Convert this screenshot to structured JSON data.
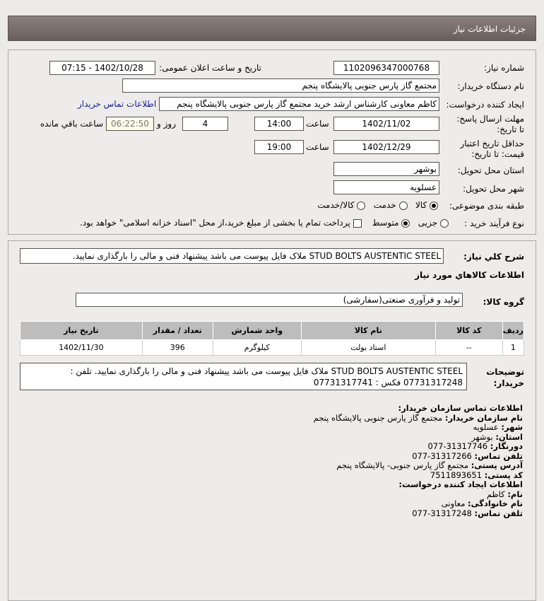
{
  "header": {
    "title": "جزئیات اطلاعات نیاز"
  },
  "form": {
    "need_number_label": "شماره نیاز:",
    "need_number": "1102096347000768",
    "announce_label": "تاریخ و ساعت اعلان عمومی:",
    "announce_value": "1402/10/28 - 07:15",
    "buyer_org_label": "نام دستگاه خریدار:",
    "buyer_org": "مجتمع گاز پارس جنوبی  پالایشگاه پنجم",
    "creator_label": "ایجاد کننده درخواست:",
    "creator": "کاظم معاونی کارشناس ارشد خرید مجتمع گاز پارس جنوبی  پالایشگاه پنجم",
    "contact_link": "اطلاعات تماس خریدار",
    "deadline_label": "مهلت ارسال پاسخ: تا تاریخ:",
    "deadline_date": "1402/11/02",
    "time_label": "ساعت",
    "deadline_time": "14:00",
    "days": "4",
    "days_label": "روز و",
    "remaining": "06:22:50",
    "remaining_label": "ساعت باقي مانده",
    "validity_label": "حداقل تاریخ اعتبار قیمت: تا تاریخ:",
    "validity_date": "1402/12/29",
    "validity_time": "19:00",
    "province_label": "استان محل تحویل:",
    "province": "بوشهر",
    "city_label": "شهر محل تحویل:",
    "city": "عسلویه",
    "category_label": "طبقه بندی موضوعی:",
    "category_options": [
      "کالا",
      "خدمت",
      "کالا/خدمت"
    ],
    "category_selected": "کالا",
    "process_label": "نوع فرآیند خرید :",
    "process_options": [
      "جزیی",
      "متوسط"
    ],
    "process_selected": "متوسط",
    "payment_note": "پرداخت تمام یا بخشی از مبلغ خرید،از محل \"اسناد خزانه اسلامی\" خواهد بود."
  },
  "summary": {
    "label": "شرح کلي نياز:",
    "text": "STUD BOLTS AUSTENTIC STEEL ملاک فایل پیوست می باشد پیشنهاد فنی و مالی را بارگذاری نمایید."
  },
  "goods": {
    "heading": "اطلاعات کالاهاي مورد نياز",
    "group_label": "گروه کالا:",
    "group": "تولید و فرآوری صنعتی(سفارشی)",
    "columns": [
      "ردیف",
      "کد کالا",
      "نام کالا",
      "واحد شمارش",
      "تعداد / مقدار",
      "تاریخ نیاز"
    ],
    "rows": [
      [
        "1",
        "--",
        "استاد بولت",
        "کیلوگرم",
        "396",
        "1402/11/30"
      ]
    ]
  },
  "buyer_notes": {
    "label": "توضیحات خریدار:",
    "text": "STUD BOLTS AUSTENTIC STEEL ملاک فایل پیوست می باشد پیشنهاد فنی و مالی را بارگذاری نمایید. تلفن : 07731317248 فکس : 07731317741"
  },
  "contact": {
    "title": "اطلاعات تماس سازمان خریدار:",
    "items": [
      {
        "k": "نام سازمان خریدار:",
        "v": "مجتمع گاز پارس جنوبی پالایشگاه پنجم"
      },
      {
        "k": "شهر:",
        "v": "عسلویه"
      },
      {
        "k": "استان:",
        "v": "بوشهر"
      },
      {
        "k": "دورنگار:",
        "v": "31317746-077"
      },
      {
        "k": "تلفن تماس:",
        "v": "31317266-077"
      },
      {
        "k": "آدرس پستی:",
        "v": "مجتمع گاز پارس جنوبی- پالایشگاه پنجم"
      },
      {
        "k": "کد پستی:",
        "v": "7511893651"
      }
    ],
    "creator_title": "اطلاعات ایجاد کننده درخواست:",
    "creator_items": [
      {
        "k": "نام:",
        "v": "کاظم"
      },
      {
        "k": "نام خانوادگی:",
        "v": "معاونی"
      },
      {
        "k": "تلفن تماس:",
        "v": "31317248-077"
      }
    ]
  }
}
